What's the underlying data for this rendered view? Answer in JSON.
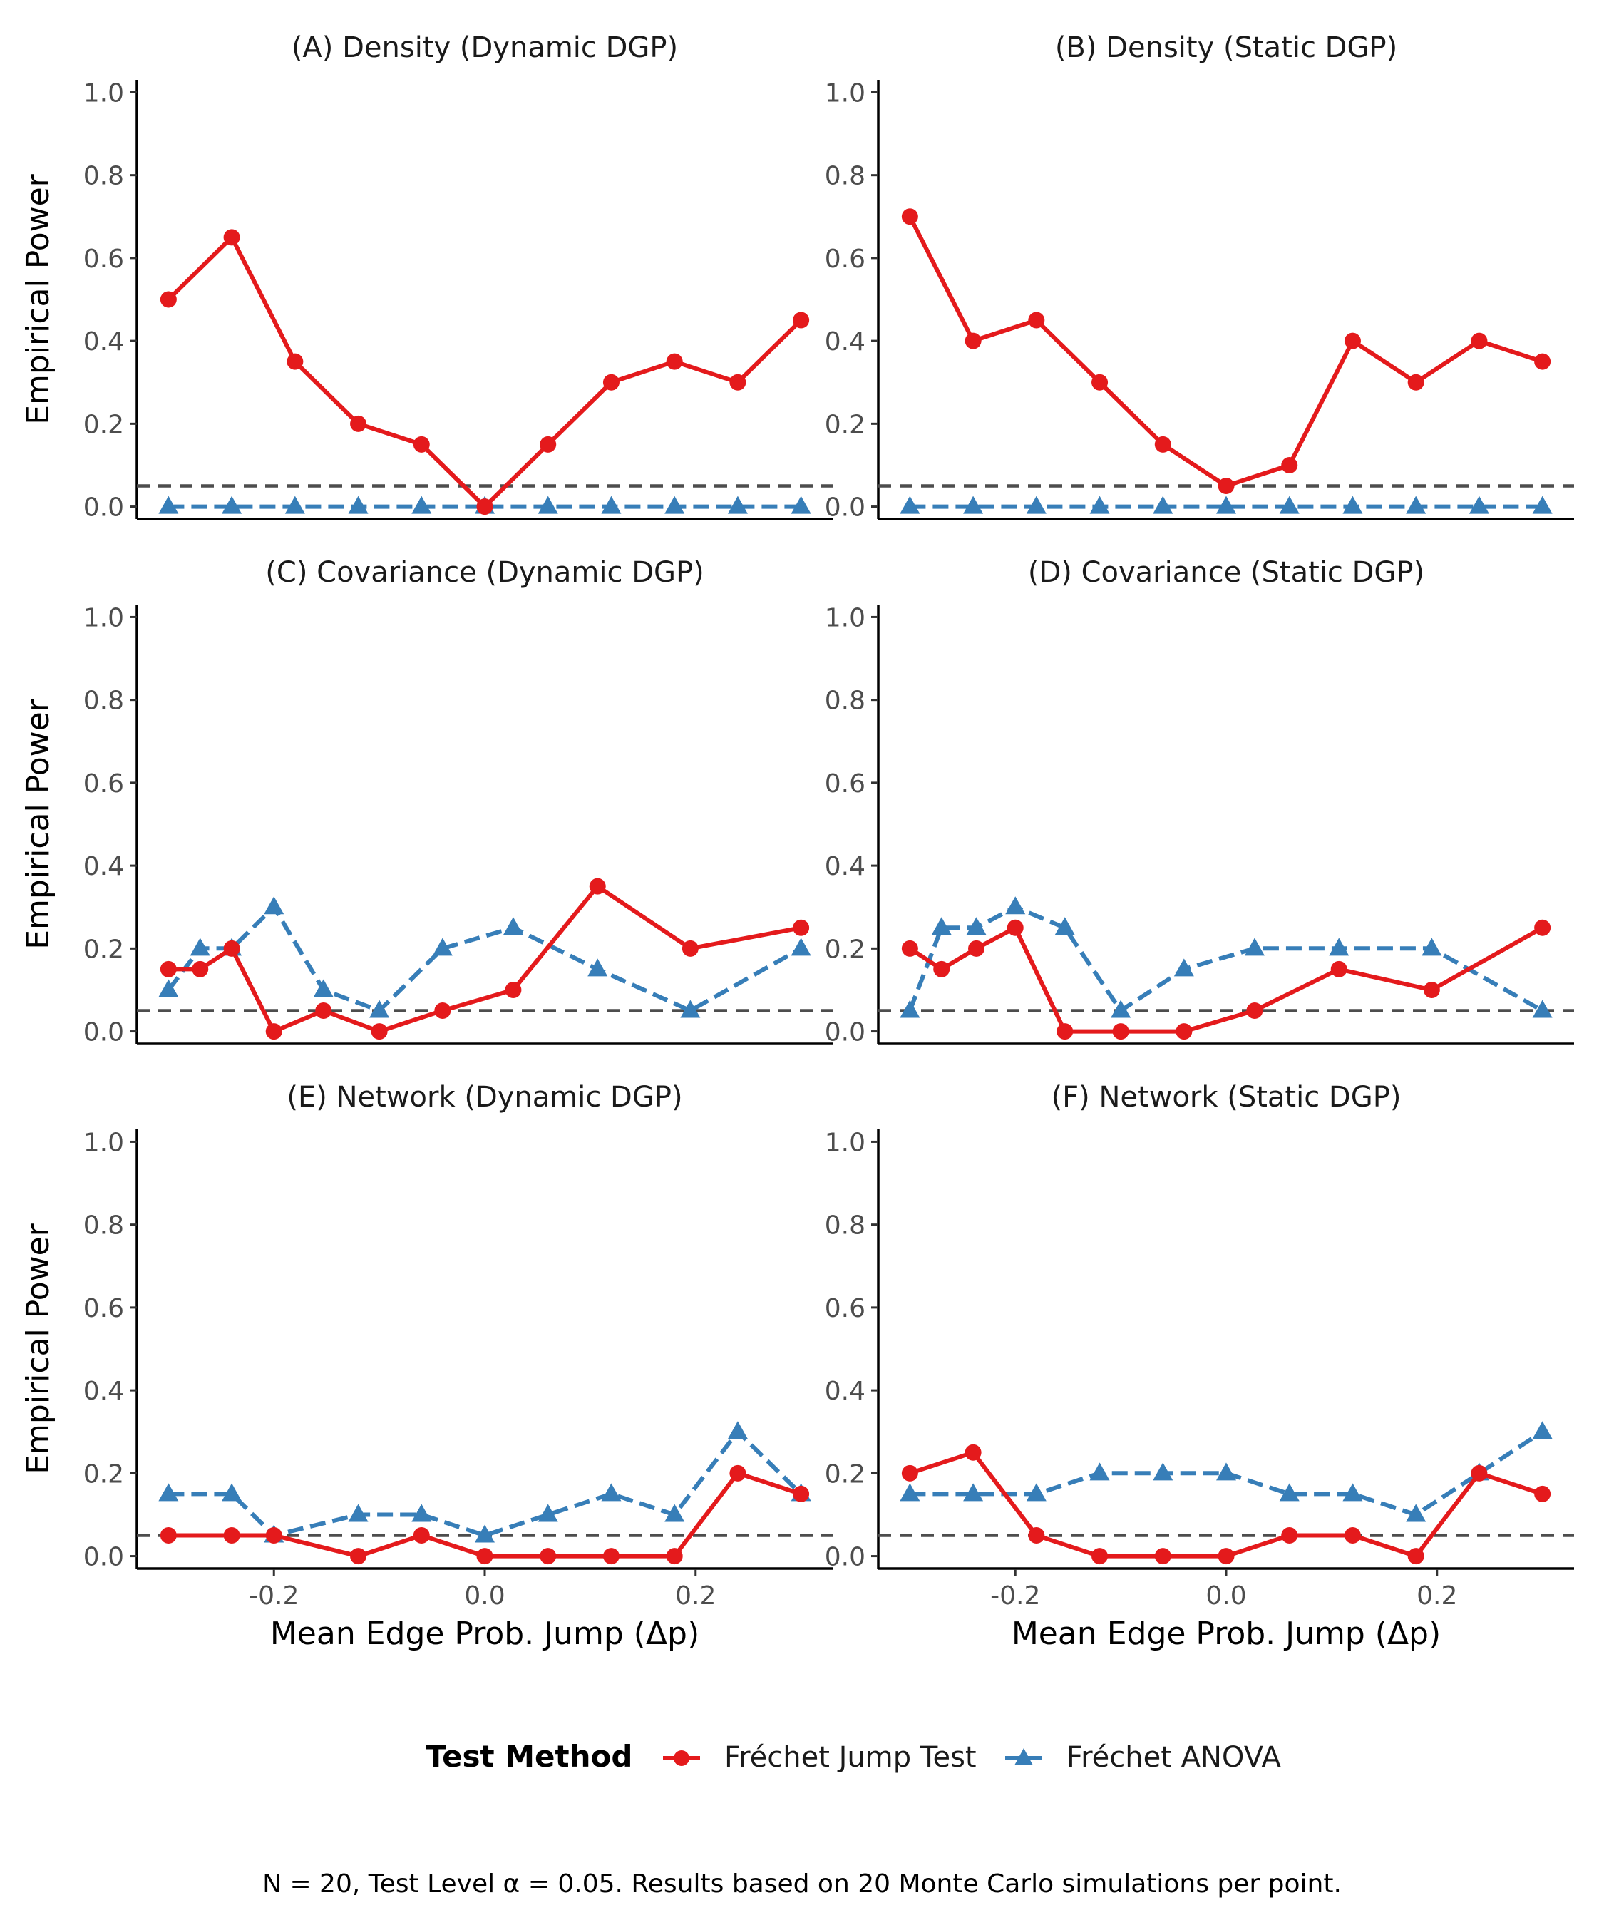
{
  "chart_data": {
    "type": "line",
    "layout": "3x2 facet grid",
    "xlabel": "Mean Edge Prob. Jump (Δp)",
    "ylabel": "Empirical Power",
    "xlim": [
      -0.33,
      0.33
    ],
    "ylim": [
      -0.03,
      1.03
    ],
    "xticks": [
      -0.2,
      0.0,
      0.2
    ],
    "xtick_labels": [
      "-0.2",
      "0.0",
      "0.2"
    ],
    "yticks": [
      0.0,
      0.2,
      0.4,
      0.6,
      0.8,
      1.0
    ],
    "ytick_labels": [
      "0.0",
      "0.2",
      "0.4",
      "0.6",
      "0.8",
      "1.0"
    ],
    "reference_line": {
      "y": 0.05,
      "style": "dashed",
      "color": "#4d4d4d"
    },
    "grid": false,
    "legend": {
      "position": "bottom",
      "title": "Test Method",
      "entries": [
        {
          "name": "Fréchet Jump Test",
          "color": "#e41a1c",
          "marker": "circle",
          "line": "solid"
        },
        {
          "name": "Fréchet ANOVA",
          "color": "#377eb8",
          "marker": "triangle",
          "line": "dashed"
        }
      ]
    },
    "caption": "N = 20, Test Level α = 0.05. Results based on 20 Monte Carlo simulations per point.",
    "panels": [
      {
        "title": "(A) Density (Dynamic DGP)",
        "series": [
          {
            "name": "Fréchet Jump Test",
            "x": [
              -0.3,
              -0.24,
              -0.18,
              -0.12,
              -0.06,
              0.0,
              0.06,
              0.12,
              0.18,
              0.24,
              0.3
            ],
            "y": [
              0.5,
              0.65,
              0.35,
              0.2,
              0.15,
              0.0,
              0.15,
              0.3,
              0.35,
              0.3,
              0.45
            ]
          },
          {
            "name": "Fréchet ANOVA",
            "x": [
              -0.3,
              -0.24,
              -0.18,
              -0.12,
              -0.06,
              0.0,
              0.06,
              0.12,
              0.18,
              0.24,
              0.3
            ],
            "y": [
              0,
              0,
              0,
              0,
              0,
              0,
              0,
              0,
              0,
              0,
              0
            ]
          }
        ]
      },
      {
        "title": "(B) Density (Static DGP)",
        "series": [
          {
            "name": "Fréchet Jump Test",
            "x": [
              -0.3,
              -0.24,
              -0.18,
              -0.12,
              -0.06,
              0.0,
              0.06,
              0.12,
              0.18,
              0.24,
              0.3
            ],
            "y": [
              0.7,
              0.4,
              0.45,
              0.3,
              0.15,
              0.05,
              0.1,
              0.4,
              0.3,
              0.4,
              0.35
            ]
          },
          {
            "name": "Fréchet ANOVA",
            "x": [
              -0.3,
              -0.24,
              -0.18,
              -0.12,
              -0.06,
              0.0,
              0.06,
              0.12,
              0.18,
              0.24,
              0.3
            ],
            "y": [
              0,
              0,
              0,
              0,
              0,
              0,
              0,
              0,
              0,
              0,
              0
            ]
          }
        ]
      },
      {
        "title": "(C) Covariance (Dynamic DGP)",
        "series": [
          {
            "name": "Fréchet Jump Test",
            "x": [
              -0.3,
              -0.27,
              -0.24,
              -0.2,
              -0.153,
              -0.1,
              -0.04,
              0.027,
              0.107,
              0.195,
              0.3
            ],
            "y": [
              0.15,
              0.15,
              0.2,
              0.0,
              0.05,
              0.0,
              0.05,
              0.1,
              0.35,
              0.2,
              0.25
            ]
          },
          {
            "name": "Fréchet ANOVA",
            "x": [
              -0.3,
              -0.27,
              -0.24,
              -0.2,
              -0.153,
              -0.1,
              -0.04,
              0.027,
              0.107,
              0.195,
              0.3
            ],
            "y": [
              0.1,
              0.2,
              0.2,
              0.3,
              0.1,
              0.05,
              0.2,
              0.25,
              0.15,
              0.05,
              0.2
            ]
          }
        ]
      },
      {
        "title": "(D) Covariance (Static DGP)",
        "series": [
          {
            "name": "Fréchet Jump Test",
            "x": [
              -0.3,
              -0.27,
              -0.237,
              -0.2,
              -0.153,
              -0.1,
              -0.04,
              0.027,
              0.107,
              0.195,
              0.3
            ],
            "y": [
              0.2,
              0.15,
              0.2,
              0.25,
              0.0,
              0.0,
              0.0,
              0.05,
              0.15,
              0.1,
              0.25
            ]
          },
          {
            "name": "Fréchet ANOVA",
            "x": [
              -0.3,
              -0.27,
              -0.237,
              -0.2,
              -0.153,
              -0.1,
              -0.04,
              0.027,
              0.107,
              0.195,
              0.3
            ],
            "y": [
              0.05,
              0.25,
              0.25,
              0.3,
              0.25,
              0.05,
              0.15,
              0.2,
              0.2,
              0.2,
              0.05
            ]
          }
        ]
      },
      {
        "title": "(E) Network (Dynamic DGP)",
        "series": [
          {
            "name": "Fréchet Jump Test",
            "x": [
              -0.3,
              -0.24,
              -0.2,
              -0.12,
              -0.06,
              0.0,
              0.06,
              0.12,
              0.18,
              0.24,
              0.3
            ],
            "y": [
              0.05,
              0.05,
              0.05,
              0.0,
              0.05,
              0.0,
              0.0,
              0.0,
              0.0,
              0.2,
              0.15
            ]
          },
          {
            "name": "Fréchet ANOVA",
            "x": [
              -0.3,
              -0.24,
              -0.2,
              -0.12,
              -0.06,
              0.0,
              0.06,
              0.12,
              0.18,
              0.24,
              0.3
            ],
            "y": [
              0.15,
              0.15,
              0.05,
              0.1,
              0.1,
              0.05,
              0.1,
              0.15,
              0.1,
              0.3,
              0.15
            ]
          }
        ]
      },
      {
        "title": "(F) Network (Static DGP)",
        "series": [
          {
            "name": "Fréchet Jump Test",
            "x": [
              -0.3,
              -0.24,
              -0.18,
              -0.12,
              -0.06,
              0.0,
              0.06,
              0.12,
              0.18,
              0.24,
              0.3
            ],
            "y": [
              0.2,
              0.25,
              0.05,
              0.0,
              0.0,
              0.0,
              0.05,
              0.05,
              0.0,
              0.2,
              0.15
            ]
          },
          {
            "name": "Fréchet ANOVA",
            "x": [
              -0.3,
              -0.24,
              -0.18,
              -0.12,
              -0.06,
              0.0,
              0.06,
              0.12,
              0.18,
              0.24,
              0.3
            ],
            "y": [
              0.15,
              0.15,
              0.15,
              0.2,
              0.2,
              0.2,
              0.15,
              0.15,
              0.1,
              0.2,
              0.3
            ]
          }
        ]
      }
    ]
  }
}
